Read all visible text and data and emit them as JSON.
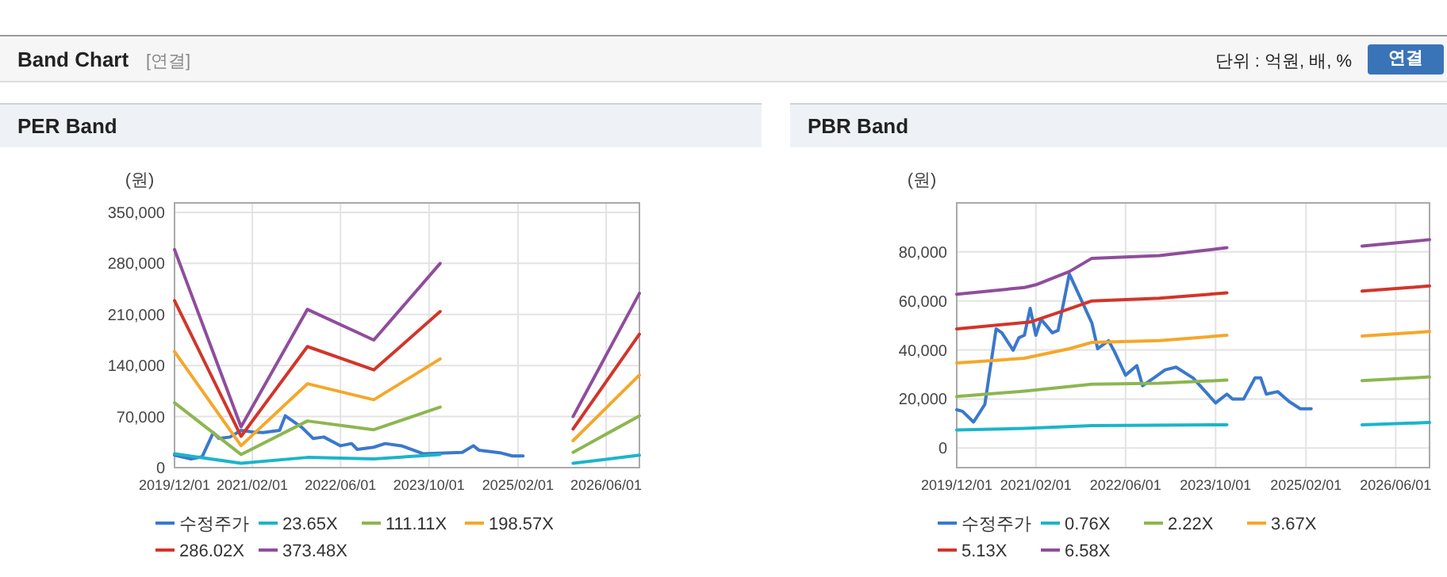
{
  "chart_data": [
    {
      "type": "other",
      "title": "Band Chart",
      "subtitle": "[연결]",
      "annotations": [
        "단위 : 억원, 배, %",
        "연결"
      ]
    },
    {
      "type": "line",
      "title": "PER Band",
      "ylabel": "(원)",
      "legend": "bottom",
      "grid": true,
      "xlim": [
        "2019-12-01",
        "2026-12-01"
      ],
      "xticks": [
        {
          "value": "2019-12-01",
          "label": "2019/12/01"
        },
        {
          "value": "2021-02-01",
          "label": "2021/02/01"
        },
        {
          "value": "2022-06-01",
          "label": "2022/06/01"
        },
        {
          "value": "2023-10-01",
          "label": "2023/10/01"
        },
        {
          "value": "2025-02-01",
          "label": "2025/02/01"
        },
        {
          "value": "2026-06-01",
          "label": "2026/06/01"
        }
      ],
      "ylim": [
        0,
        363000
      ],
      "yticks": [
        {
          "value": 0,
          "label": "0"
        },
        {
          "value": 70000,
          "label": "70,000"
        },
        {
          "value": 140000,
          "label": "140,000"
        },
        {
          "value": 210000,
          "label": "210,000"
        },
        {
          "value": 280000,
          "label": "280,000"
        },
        {
          "value": 350000,
          "label": "350,000"
        }
      ],
      "series": [
        {
          "name": "수정주가",
          "color": "#3a78cc",
          "x": [
            "2019-12",
            "2020-03",
            "2020-05",
            "2020-07",
            "2020-08",
            "2020-10",
            "2020-12",
            "2021-02",
            "2021-04",
            "2021-07",
            "2021-08",
            "2021-11",
            "2022-01",
            "2022-03",
            "2022-06",
            "2022-08",
            "2022-09",
            "2022-12",
            "2023-02",
            "2023-05",
            "2023-09",
            "2024-04",
            "2024-06",
            "2024-07",
            "2024-11",
            "2025-01",
            "2025-03"
          ],
          "values": [
            17000,
            12000,
            15000,
            48000,
            40000,
            42000,
            51000,
            49000,
            48000,
            51000,
            71000,
            55000,
            40000,
            42000,
            30000,
            33000,
            25000,
            28000,
            33000,
            30000,
            19000,
            21000,
            30000,
            24000,
            20000,
            16000,
            16000
          ]
        },
        {
          "name": "23.65X",
          "color": "#1bb5c9",
          "x": [
            "2019-12",
            "2020-12",
            "2021-12",
            "2022-12",
            "2023-12",
            "2024-12",
            "2025-12",
            "2026-12"
          ],
          "values": [
            19000,
            6000,
            14000,
            12000,
            18000,
            null,
            6000,
            17000
          ]
        },
        {
          "name": "111.11X",
          "color": "#8db650",
          "x": [
            "2019-12",
            "2020-12",
            "2021-12",
            "2022-12",
            "2023-12",
            "2024-12",
            "2025-12",
            "2026-12"
          ],
          "values": [
            89000,
            18000,
            64000,
            52000,
            83000,
            null,
            21000,
            71000
          ]
        },
        {
          "name": "198.57X",
          "color": "#f5a72a",
          "x": [
            "2019-12",
            "2020-12",
            "2021-12",
            "2022-12",
            "2023-12",
            "2024-12",
            "2025-12",
            "2026-12"
          ],
          "values": [
            159000,
            30000,
            115000,
            93000,
            149000,
            null,
            37000,
            127000
          ]
        },
        {
          "name": "286.02X",
          "color": "#d2352a",
          "x": [
            "2019-12",
            "2020-12",
            "2021-12",
            "2022-12",
            "2023-12",
            "2024-12",
            "2025-12",
            "2026-12"
          ],
          "values": [
            229000,
            43000,
            166000,
            134000,
            214000,
            null,
            53000,
            183000
          ]
        },
        {
          "name": "373.48X",
          "color": "#8f4d9c",
          "x": [
            "2019-12",
            "2020-12",
            "2021-12",
            "2022-12",
            "2023-12",
            "2024-12",
            "2025-12",
            "2026-12"
          ],
          "values": [
            299000,
            56000,
            217000,
            175000,
            280000,
            null,
            70000,
            239000
          ]
        }
      ]
    },
    {
      "type": "line",
      "title": "PBR Band",
      "ylabel": "(원)",
      "legend": "bottom",
      "grid": true,
      "xlim": [
        "2019-12-01",
        "2026-12-01"
      ],
      "xticks": [
        {
          "value": "2019-12-01",
          "label": "2019/12/01"
        },
        {
          "value": "2021-02-01",
          "label": "2021/02/01"
        },
        {
          "value": "2022-06-01",
          "label": "2022/06/01"
        },
        {
          "value": "2023-10-01",
          "label": "2023/10/01"
        },
        {
          "value": "2025-02-01",
          "label": "2025/02/01"
        },
        {
          "value": "2026-06-01",
          "label": "2026/06/01"
        }
      ],
      "ylim": [
        -8000,
        100000
      ],
      "yticks": [
        {
          "value": 0,
          "label": "0"
        },
        {
          "value": 20000,
          "label": "20,000"
        },
        {
          "value": 40000,
          "label": "40,000"
        },
        {
          "value": 60000,
          "label": "60,000"
        },
        {
          "value": 80000,
          "label": "80,000"
        }
      ],
      "series": [
        {
          "name": "수정주가",
          "color": "#3a78cc",
          "x": [
            "2019-12",
            "2020-01",
            "2020-03",
            "2020-05",
            "2020-07",
            "2020-08",
            "2020-10",
            "2020-11",
            "2020-12",
            "2021-01",
            "2021-02",
            "2021-03",
            "2021-05",
            "2021-06",
            "2021-08",
            "2021-10",
            "2021-12",
            "2022-01",
            "2022-03",
            "2022-04",
            "2022-06",
            "2022-08",
            "2022-09",
            "2022-11",
            "2023-01",
            "2023-03",
            "2023-06",
            "2023-10",
            "2023-12",
            "2024-01",
            "2024-03",
            "2024-05",
            "2024-06",
            "2024-07",
            "2024-09",
            "2024-11",
            "2025-01",
            "2025-03"
          ],
          "values": [
            15600,
            15000,
            10600,
            17800,
            48600,
            47000,
            39900,
            45000,
            46000,
            57000,
            46000,
            52500,
            47000,
            48000,
            71000,
            61000,
            51000,
            40500,
            43800,
            39500,
            29700,
            33600,
            25400,
            28600,
            31900,
            33000,
            28600,
            18400,
            22000,
            20000,
            20000,
            28600,
            28600,
            22000,
            23000,
            19000,
            16000,
            16000
          ]
        },
        {
          "name": "0.76X",
          "color": "#1bb5c9",
          "x": [
            "2019-12",
            "2020-12",
            "2021-12",
            "2023-12",
            "2024-12",
            "2025-12",
            "2026-12"
          ],
          "values": [
            7400,
            8000,
            9100,
            9500,
            null,
            9500,
            10400
          ]
        },
        {
          "name": "2.22X",
          "color": "#8db650",
          "x": [
            "2019-12",
            "2020-12",
            "2021-12",
            "2022-12",
            "2023-12",
            "2024-12",
            "2025-12",
            "2026-12"
          ],
          "values": [
            21000,
            23200,
            26000,
            26400,
            27700,
            null,
            27500,
            29000
          ]
        },
        {
          "name": "3.67X",
          "color": "#f5a72a",
          "x": [
            "2019-12",
            "2020-12",
            "2021-08",
            "2021-12",
            "2022-12",
            "2023-12",
            "2024-12",
            "2025-12",
            "2026-12"
          ],
          "values": [
            34700,
            36600,
            40500,
            43100,
            43800,
            46000,
            null,
            45700,
            47500
          ]
        },
        {
          "name": "5.13X",
          "color": "#d2352a",
          "x": [
            "2019-12",
            "2021-01",
            "2021-08",
            "2021-12",
            "2022-12",
            "2023-12",
            "2024-12",
            "2025-12",
            "2026-12"
          ],
          "values": [
            48600,
            51400,
            56800,
            60000,
            61100,
            63300,
            null,
            64000,
            66100
          ]
        },
        {
          "name": "6.58X",
          "color": "#8f4d9c",
          "x": [
            "2019-12",
            "2020-12",
            "2021-02",
            "2021-08",
            "2021-12",
            "2022-12",
            "2023-12",
            "2024-12",
            "2025-12",
            "2026-12"
          ],
          "values": [
            62700,
            65500,
            66600,
            72000,
            77400,
            78500,
            81700,
            null,
            82400,
            85000
          ]
        }
      ]
    }
  ]
}
